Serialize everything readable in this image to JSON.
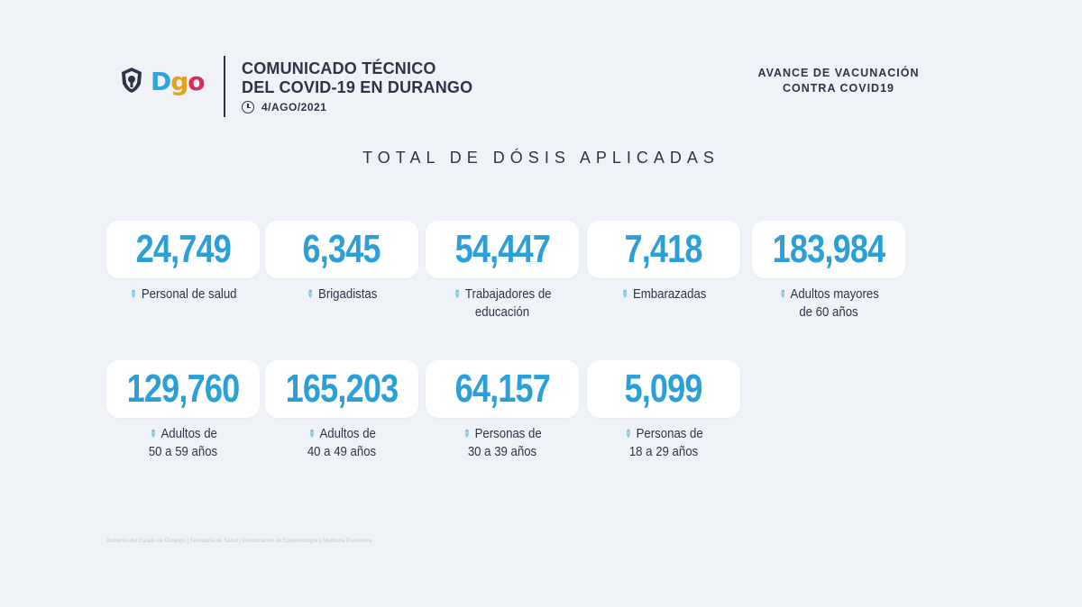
{
  "header": {
    "logo_text": [
      "D",
      "g",
      "o"
    ],
    "title_lines": [
      "COMUNICADO TÉCNICO",
      "DEL COVID-19 EN DURANGO"
    ],
    "date": "4/AGO/2021"
  },
  "avance": {
    "lines": [
      "AVANCE DE VACUNACIÓN",
      "CONTRA COVID19"
    ]
  },
  "section_title": "TOTAL DE DÓSIS APLICADAS",
  "cards": [
    {
      "value": "24,749",
      "label_lines": [
        "Personal de salud"
      ]
    },
    {
      "value": "6,345",
      "label_lines": [
        "Brigadistas"
      ]
    },
    {
      "value": "54,447",
      "label_lines": [
        "Trabajadores de",
        "educación"
      ]
    },
    {
      "value": "7,418",
      "label_lines": [
        "Embarazadas"
      ]
    },
    {
      "value": "183,984",
      "label_lines": [
        "Adultos mayores",
        "de 60 años"
      ]
    },
    {
      "value": "129,760",
      "label_lines": [
        "Adultos de",
        "50 a 59 años"
      ]
    },
    {
      "value": "165,203",
      "label_lines": [
        "Adultos de",
        "40 a 49 años"
      ]
    },
    {
      "value": "64,157",
      "label_lines": [
        "Personas de",
        "30 a 39 años"
      ]
    },
    {
      "value": "5,099",
      "label_lines": [
        "Personas de",
        "18 a 29 años"
      ]
    }
  ],
  "footer": "Gobierno del Estado de Durango | Secretaría de Salud | Coordinación de Epidemiología y Medicina Preventiva",
  "colors": {
    "accent": "#2ba0d8",
    "text": "#2d3448",
    "background": "#eff2f6",
    "card": "#ffffff"
  }
}
